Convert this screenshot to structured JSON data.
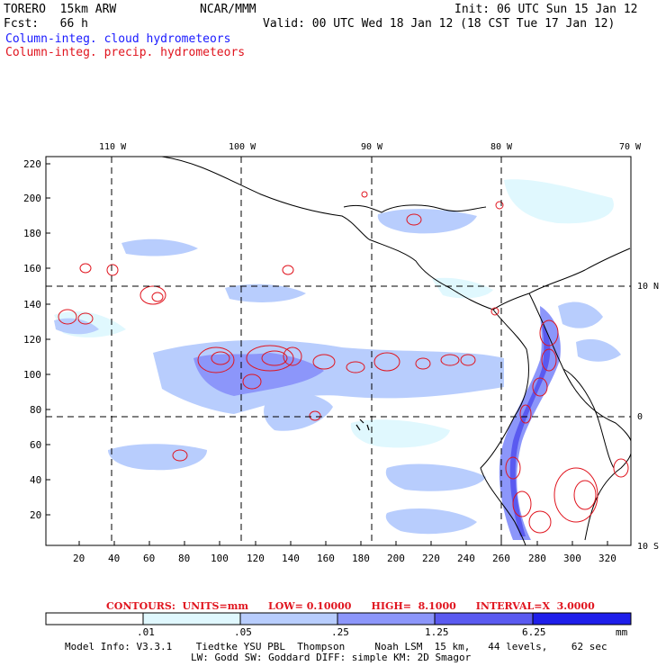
{
  "header": {
    "model": "TORERO  15km ARW",
    "center": "NCAR/MMM",
    "init": "Init: 06 UTC Sun 15 Jan 12",
    "fcst": "Fcst:   66 h",
    "valid": "Valid: 00 UTC Wed 18 Jan 12 (18 CST Tue 17 Jan 12)",
    "field1": "Column-integ. cloud hydrometeors",
    "field2": "Column-integ. precip. hydrometeors"
  },
  "axes": {
    "lon_labels": [
      "110 W",
      "100 W",
      "90 W",
      "80 W",
      "70 W"
    ],
    "lat_labels": [
      "10 N",
      "0",
      "10 S"
    ],
    "y_ticks": [
      "220",
      "200",
      "180",
      "160",
      "140",
      "120",
      "100",
      "80",
      "60",
      "40",
      "20"
    ],
    "x_ticks": [
      "20",
      "40",
      "60",
      "80",
      "100",
      "120",
      "140",
      "160",
      "180",
      "200",
      "220",
      "240",
      "260",
      "280",
      "300",
      "320"
    ]
  },
  "contours": {
    "units": "CONTOURS:  UNITS=mm",
    "low": "LOW= 0.10000",
    "high": "HIGH=  8.1000",
    "interval": "INTERVAL=X  3.0000"
  },
  "colorbar": {
    "labels": [
      ".01",
      ".05",
      ".25",
      "1.25",
      "6.25"
    ],
    "unit": "mm",
    "colors": [
      "#ffffff",
      "#e0f8fe",
      "#b8cdfd",
      "#8c96fa",
      "#5a5af0",
      "#1e1eea"
    ]
  },
  "footer": {
    "line1": "Model Info: V3.3.1    Tiedtke YSU PBL  Thompson     Noah LSM  15 km,   44 levels,    62 sec",
    "line2": "LW: Godd SW: Goddard DIFF: simple KM: 2D Smagor"
  },
  "colors": {
    "cloud": "#8c96fa",
    "precip_contour": "#e0141e",
    "coast": "#000000"
  }
}
